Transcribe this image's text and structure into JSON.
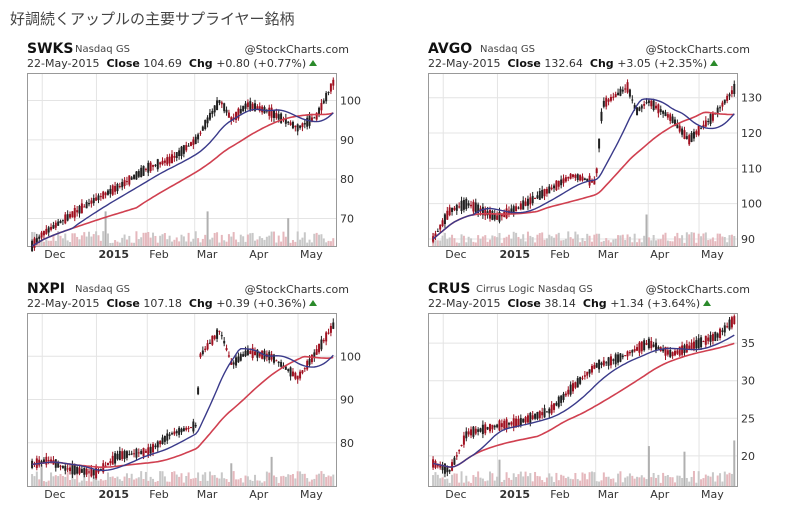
{
  "page": {
    "title": "好調続くアップルの主要サプライヤー銘柄"
  },
  "source_label": "@StockCharts.com",
  "colors": {
    "up": "#a01020",
    "down": "#202020",
    "ma_short": "#3a3a8a",
    "ma_long": "#d04050",
    "volume": "#c8c8c8",
    "volume_spike": "#b0b0b0",
    "border": "#999999"
  },
  "panels": [
    {
      "symbol": "SWKS",
      "exchange": "Nasdaq GS",
      "date": "22-May-2015",
      "close_label": "Close",
      "close": "104.69",
      "chg_label": "Chg",
      "chg": "+0.80 (+0.77%)",
      "x_labels": [
        "Dec",
        "2015",
        "Feb",
        "Mar",
        "Apr",
        "May"
      ]
    },
    {
      "symbol": "AVGO",
      "exchange": "Nasdaq GS",
      "date": "22-May-2015",
      "close_label": "Close",
      "close": "132.64",
      "chg_label": "Chg",
      "chg": "+3.05 (+2.35%)",
      "x_labels": [
        "Dec",
        "2015",
        "Feb",
        "Mar",
        "Apr",
        "May"
      ]
    },
    {
      "symbol": "NXPI",
      "exchange": "Nasdaq GS",
      "date": "22-May-2015",
      "close_label": "Close",
      "close": "107.18",
      "chg_label": "Chg",
      "chg": "+0.39 (+0.36%)",
      "x_labels": [
        "Dec",
        "2015",
        "Feb",
        "Mar",
        "Apr",
        "May"
      ]
    },
    {
      "symbol": "CRUS",
      "exchange": "Cirrus Logic  Nasdaq GS",
      "date": "22-May-2015",
      "close_label": "Close",
      "close": "38.14",
      "chg_label": "Chg",
      "chg": "+1.34 (+3.64%)",
      "x_labels": [
        "Dec",
        "2015",
        "Feb",
        "Mar",
        "Apr",
        "May"
      ]
    }
  ],
  "chart_data": [
    {
      "type": "line",
      "title": "SWKS",
      "x": [
        "2014-11-25",
        "2014-12-01",
        "2014-12-15",
        "2015-01-02",
        "2015-01-15",
        "2015-02-02",
        "2015-02-15",
        "2015-03-02",
        "2015-03-10",
        "2015-03-16",
        "2015-03-23",
        "2015-04-01",
        "2015-04-15",
        "2015-05-01",
        "2015-05-12",
        "2015-05-22"
      ],
      "series": [
        {
          "values": [
            63,
            66,
            70,
            75,
            78,
            83,
            85,
            90,
            96,
            100,
            95,
            99,
            97,
            93,
            96,
            104.7
          ]
        }
      ],
      "ylim": [
        63,
        107
      ],
      "yticks": [
        70,
        80,
        90,
        100
      ]
    },
    {
      "type": "line",
      "title": "AVGO",
      "x": [
        "2014-11-25",
        "2014-12-05",
        "2014-12-15",
        "2015-01-02",
        "2015-01-15",
        "2015-02-02",
        "2015-02-15",
        "2015-03-01",
        "2015-03-05",
        "2015-03-20",
        "2015-03-25",
        "2015-04-01",
        "2015-04-15",
        "2015-04-25",
        "2015-05-10",
        "2015-05-22"
      ],
      "series": [
        {
          "values": [
            90,
            98,
            100,
            96,
            99,
            104,
            108,
            106,
            128,
            133,
            126,
            129,
            124,
            118,
            125,
            132.6
          ]
        }
      ],
      "ylim": [
        88,
        137
      ],
      "yticks": [
        90,
        100,
        110,
        120,
        130
      ]
    },
    {
      "type": "line",
      "title": "NXPI",
      "x": [
        "2014-11-25",
        "2014-12-05",
        "2014-12-15",
        "2015-01-02",
        "2015-01-15",
        "2015-02-02",
        "2015-02-15",
        "2015-03-02",
        "2015-03-04",
        "2015-03-16",
        "2015-03-23",
        "2015-04-01",
        "2015-04-15",
        "2015-05-01",
        "2015-05-12",
        "2015-05-22"
      ],
      "series": [
        {
          "values": [
            75,
            76,
            74,
            73,
            77,
            78,
            82,
            84,
            100,
            106,
            98,
            101,
            100,
            95,
            101,
            107.2
          ]
        }
      ],
      "ylim": [
        70,
        110
      ],
      "yticks": [
        80,
        90,
        100
      ]
    },
    {
      "type": "line",
      "title": "CRUS",
      "x": [
        "2014-11-25",
        "2014-12-05",
        "2014-12-15",
        "2015-01-02",
        "2015-01-15",
        "2015-02-02",
        "2015-02-15",
        "2015-03-01",
        "2015-03-15",
        "2015-04-01",
        "2015-04-15",
        "2015-05-01",
        "2015-05-12",
        "2015-05-22"
      ],
      "series": [
        {
          "values": [
            19,
            18,
            23,
            24,
            24.5,
            26,
            29,
            32,
            33,
            35,
            33.5,
            35,
            36,
            38.1
          ]
        }
      ],
      "ylim": [
        16,
        39
      ],
      "yticks": [
        20,
        25,
        30,
        35
      ]
    }
  ]
}
